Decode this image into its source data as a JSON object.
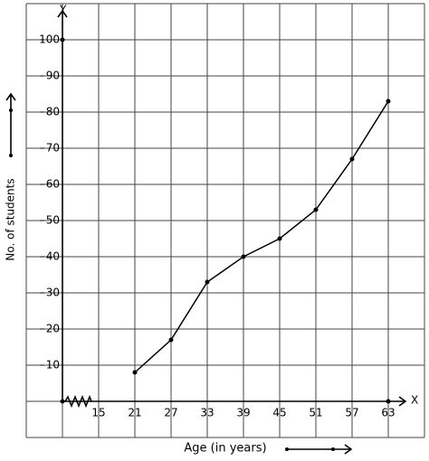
{
  "chart_data": {
    "type": "line",
    "x_label": "Age (in years)",
    "y_label": "No. of students",
    "x_axis_name": "X",
    "y_axis_name": "Y",
    "x": [
      21,
      27,
      33,
      39,
      45,
      51,
      57,
      63
    ],
    "series": [
      {
        "color": "#000000",
        "values": [
          8,
          17,
          33,
          40,
          45,
          53,
          67,
          83
        ]
      }
    ],
    "xlim": [
      9,
      69
    ],
    "xticks": [
      15,
      21,
      27,
      33,
      39,
      45,
      51,
      57,
      63
    ],
    "ylim": [
      0,
      110
    ],
    "yticks": [
      10,
      20,
      30,
      40,
      50,
      60,
      70,
      80,
      90,
      100
    ],
    "grid": true
  }
}
